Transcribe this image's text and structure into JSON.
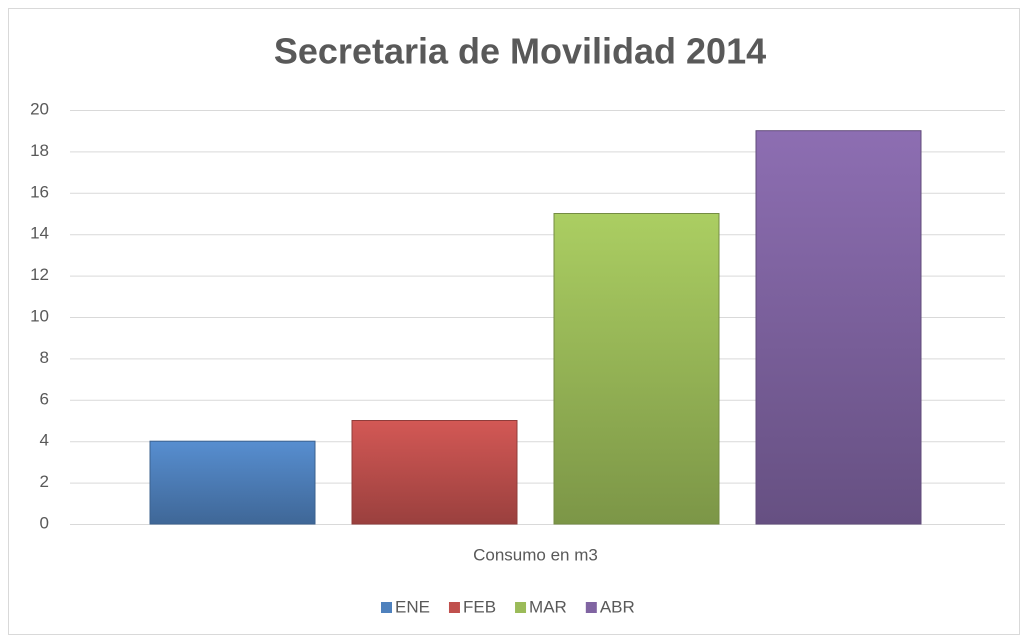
{
  "chart_data": {
    "type": "bar",
    "title": "Secretaria de Movilidad 2014",
    "categories": [
      "Consumo en m3"
    ],
    "series": [
      {
        "name": "ENE",
        "color": "#4f81bd",
        "values": [
          4
        ]
      },
      {
        "name": "FEB",
        "color": "#c0504d",
        "values": [
          5
        ]
      },
      {
        "name": "MAR",
        "color": "#9bbb59",
        "values": [
          15
        ]
      },
      {
        "name": "ABR",
        "color": "#8064a2",
        "values": [
          19
        ]
      }
    ],
    "ylim": [
      0,
      20
    ],
    "yticks": [
      0,
      2,
      4,
      6,
      8,
      10,
      12,
      14,
      16,
      18,
      20
    ],
    "grid": true,
    "legend": "bottom"
  }
}
